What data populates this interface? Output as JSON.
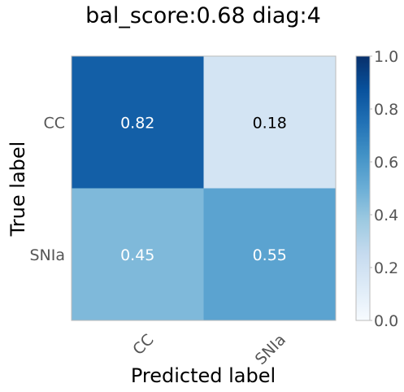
{
  "chart_data": {
    "type": "heatmap",
    "title": "bal_score:0.68 diag:4",
    "xlabel": "Predicted label",
    "ylabel": "True label",
    "x_categories": [
      "CC",
      "SNIa"
    ],
    "y_categories": [
      "CC",
      "SNIa"
    ],
    "values": [
      [
        0.82,
        0.18
      ],
      [
        0.45,
        0.55
      ]
    ],
    "value_labels": [
      [
        "0.82",
        "0.18"
      ],
      [
        "0.45",
        "0.55"
      ]
    ],
    "colorbar": {
      "range": [
        0.0,
        1.0
      ],
      "ticks": [
        "0.0",
        "0.2",
        "0.4",
        "0.6",
        "0.8",
        "1.0"
      ],
      "colormap": "Blues"
    },
    "grid": false
  }
}
